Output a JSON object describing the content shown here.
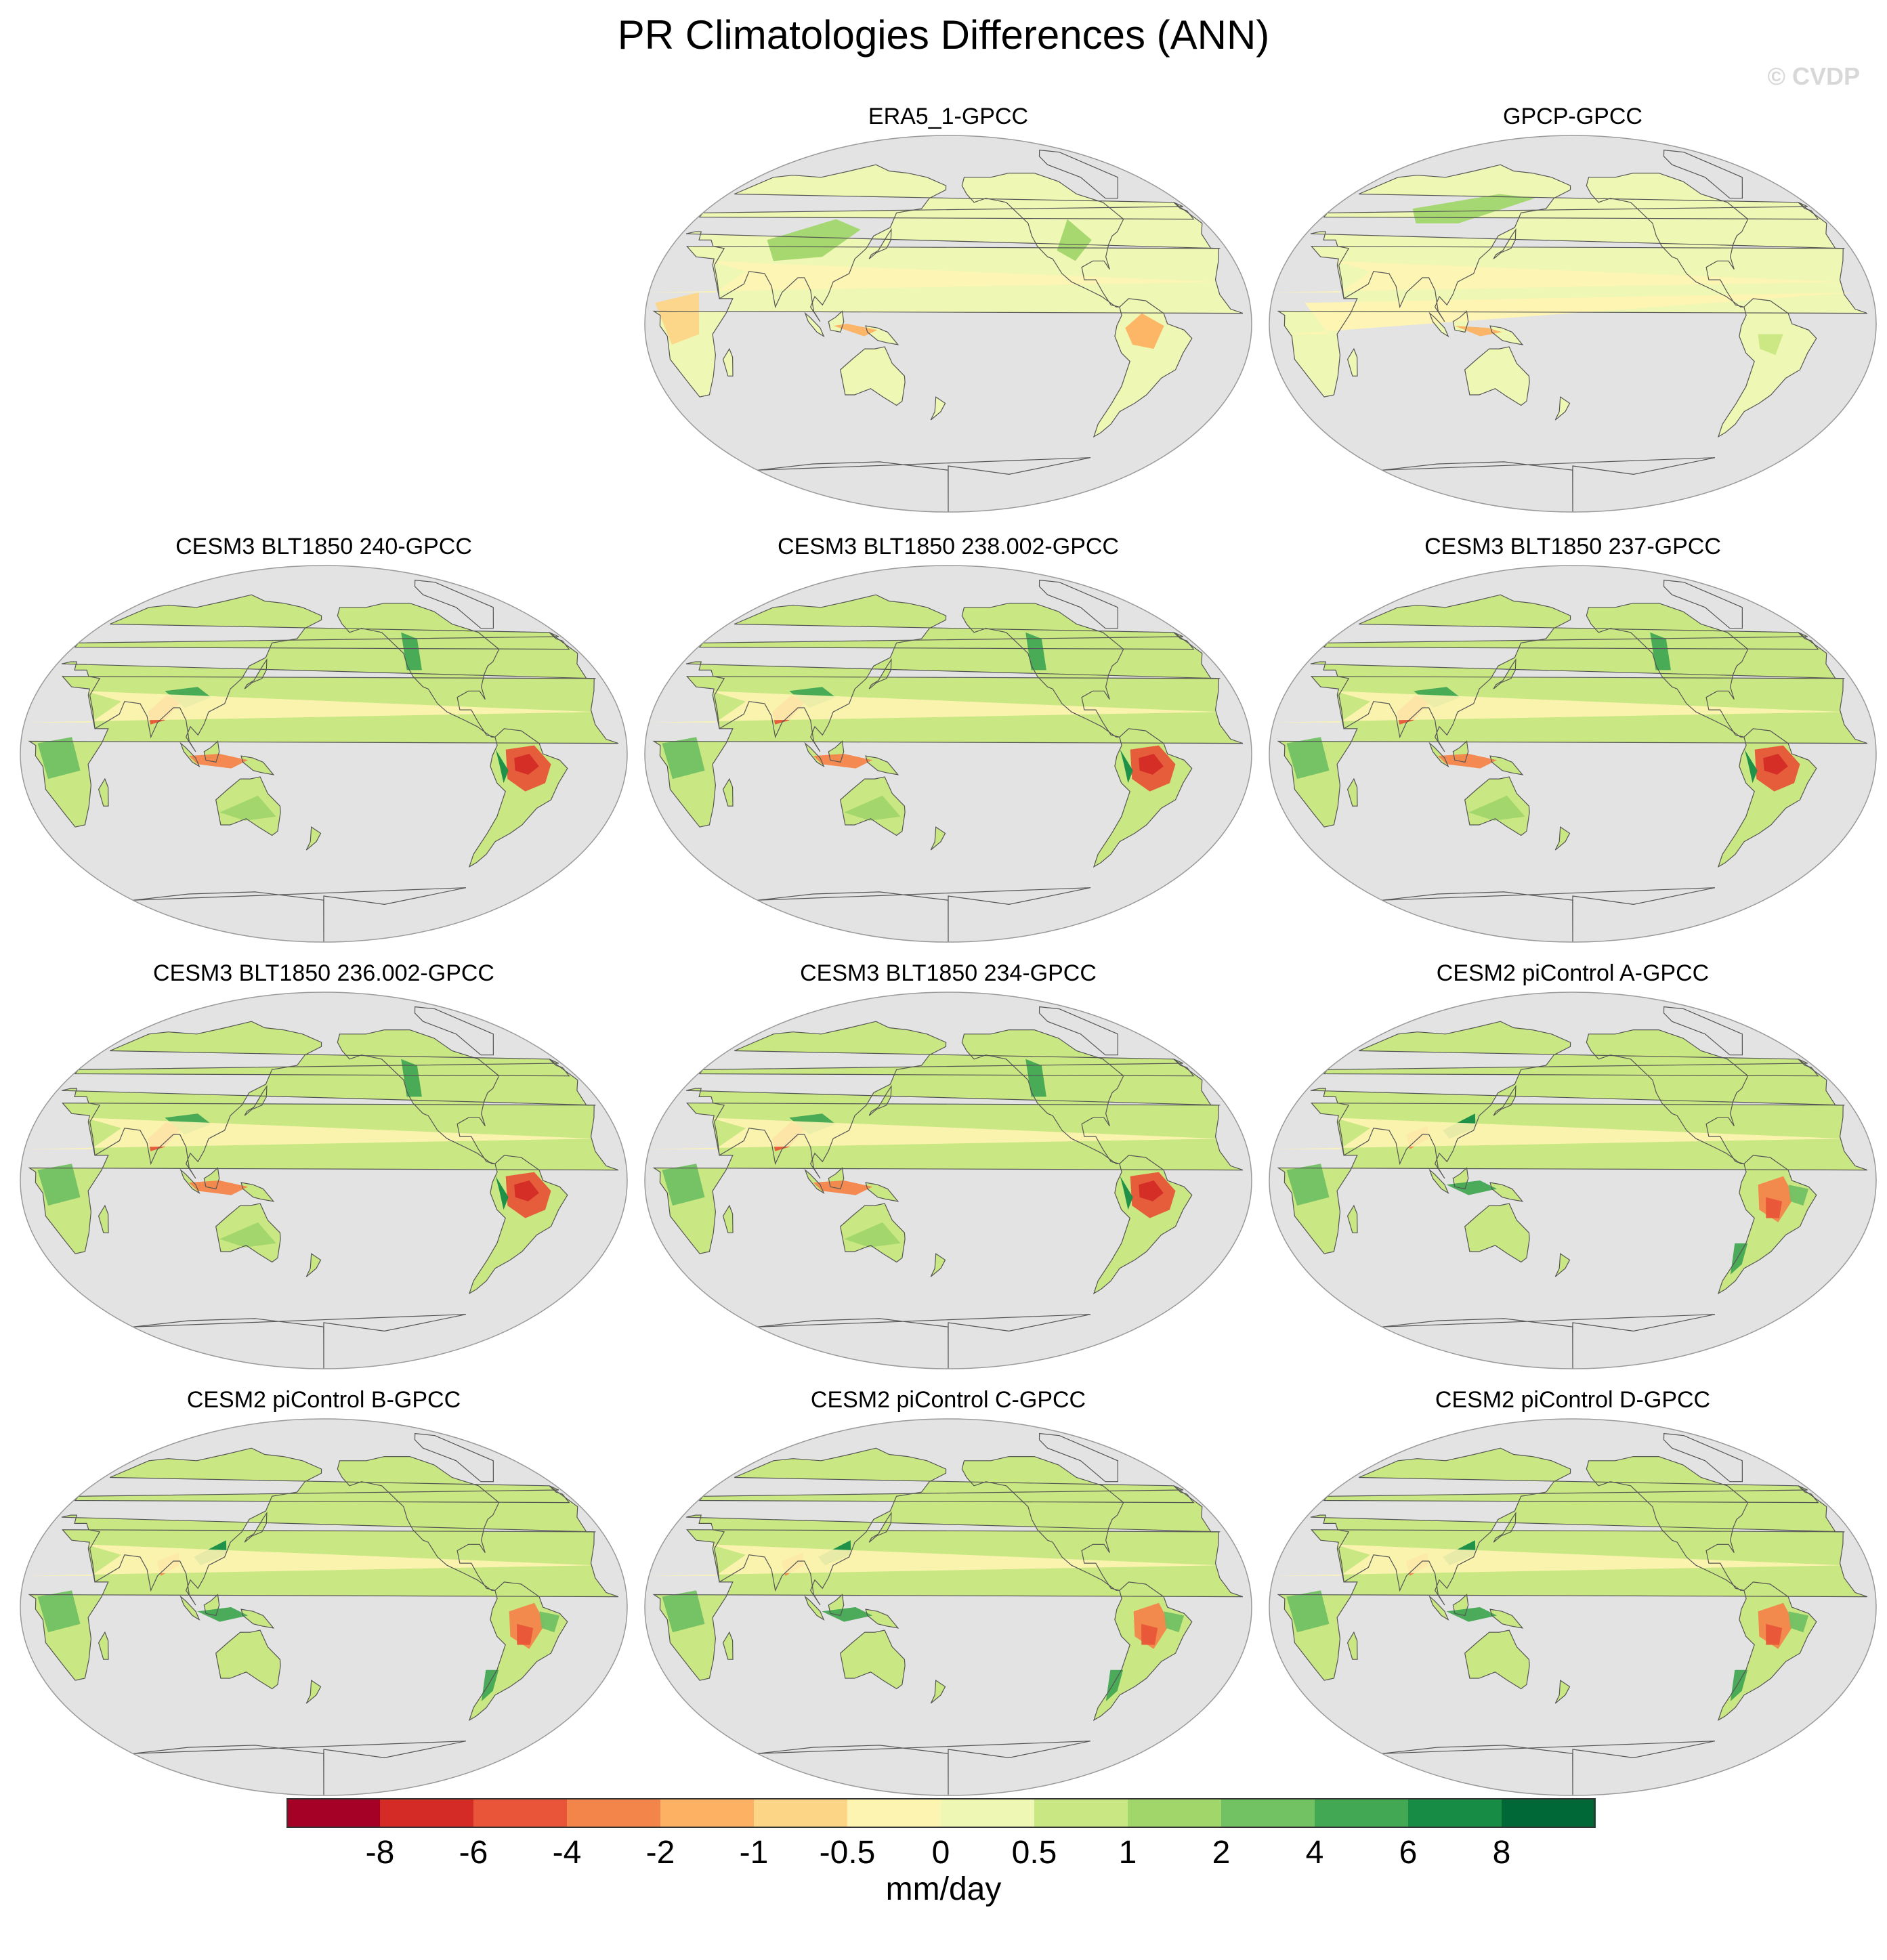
{
  "title": "PR Climatologies Differences (ANN)",
  "copyright": "© CVDP",
  "panels": [
    {
      "label": "ERA5_1-GPCC",
      "pattern": "obs1"
    },
    {
      "label": "GPCP-GPCC",
      "pattern": "obs2"
    },
    {
      "label": "CESM3 BLT1850 240-GPCC",
      "pattern": "cesm3"
    },
    {
      "label": "CESM3 BLT1850 238.002-GPCC",
      "pattern": "cesm3"
    },
    {
      "label": "CESM3 BLT1850 237-GPCC",
      "pattern": "cesm3"
    },
    {
      "label": "CESM3 BLT1850 236.002-GPCC",
      "pattern": "cesm3"
    },
    {
      "label": "CESM3 BLT1850 234-GPCC",
      "pattern": "cesm3"
    },
    {
      "label": "CESM2 piControl A-GPCC",
      "pattern": "cesm2"
    },
    {
      "label": "CESM2 piControl B-GPCC",
      "pattern": "cesm2"
    },
    {
      "label": "CESM2 piControl C-GPCC",
      "pattern": "cesm2"
    },
    {
      "label": "CESM2 piControl D-GPCC",
      "pattern": "cesm2"
    }
  ],
  "colorbar": {
    "units": "mm/day",
    "tick_labels": [
      "-8",
      "-6",
      "-4",
      "-2",
      "-1",
      "-0.5",
      "0",
      "0.5",
      "1",
      "2",
      "4",
      "6",
      "8"
    ],
    "colors": [
      "#a50026",
      "#d42b26",
      "#e85538",
      "#f4854a",
      "#fcb262",
      "#fdd587",
      "#fef4b2",
      "#eef7b3",
      "#c9e782",
      "#a1d66b",
      "#72c163",
      "#42a853",
      "#178c45",
      "#006837"
    ]
  },
  "colors": {
    "ocean": "#e3e3e3",
    "coast": "#555555"
  }
}
